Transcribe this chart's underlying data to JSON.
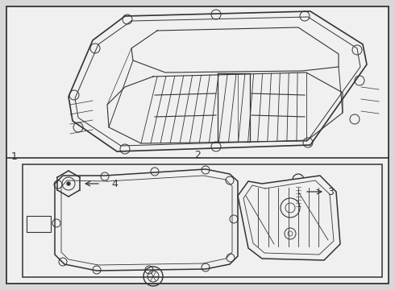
{
  "bg_color": "#d8d8d8",
  "panel_color": "#f0f0f0",
  "line_color": "#333333",
  "label_color": "#333333",
  "label1": "1",
  "label2": "2",
  "label3": "3",
  "label4": "4"
}
